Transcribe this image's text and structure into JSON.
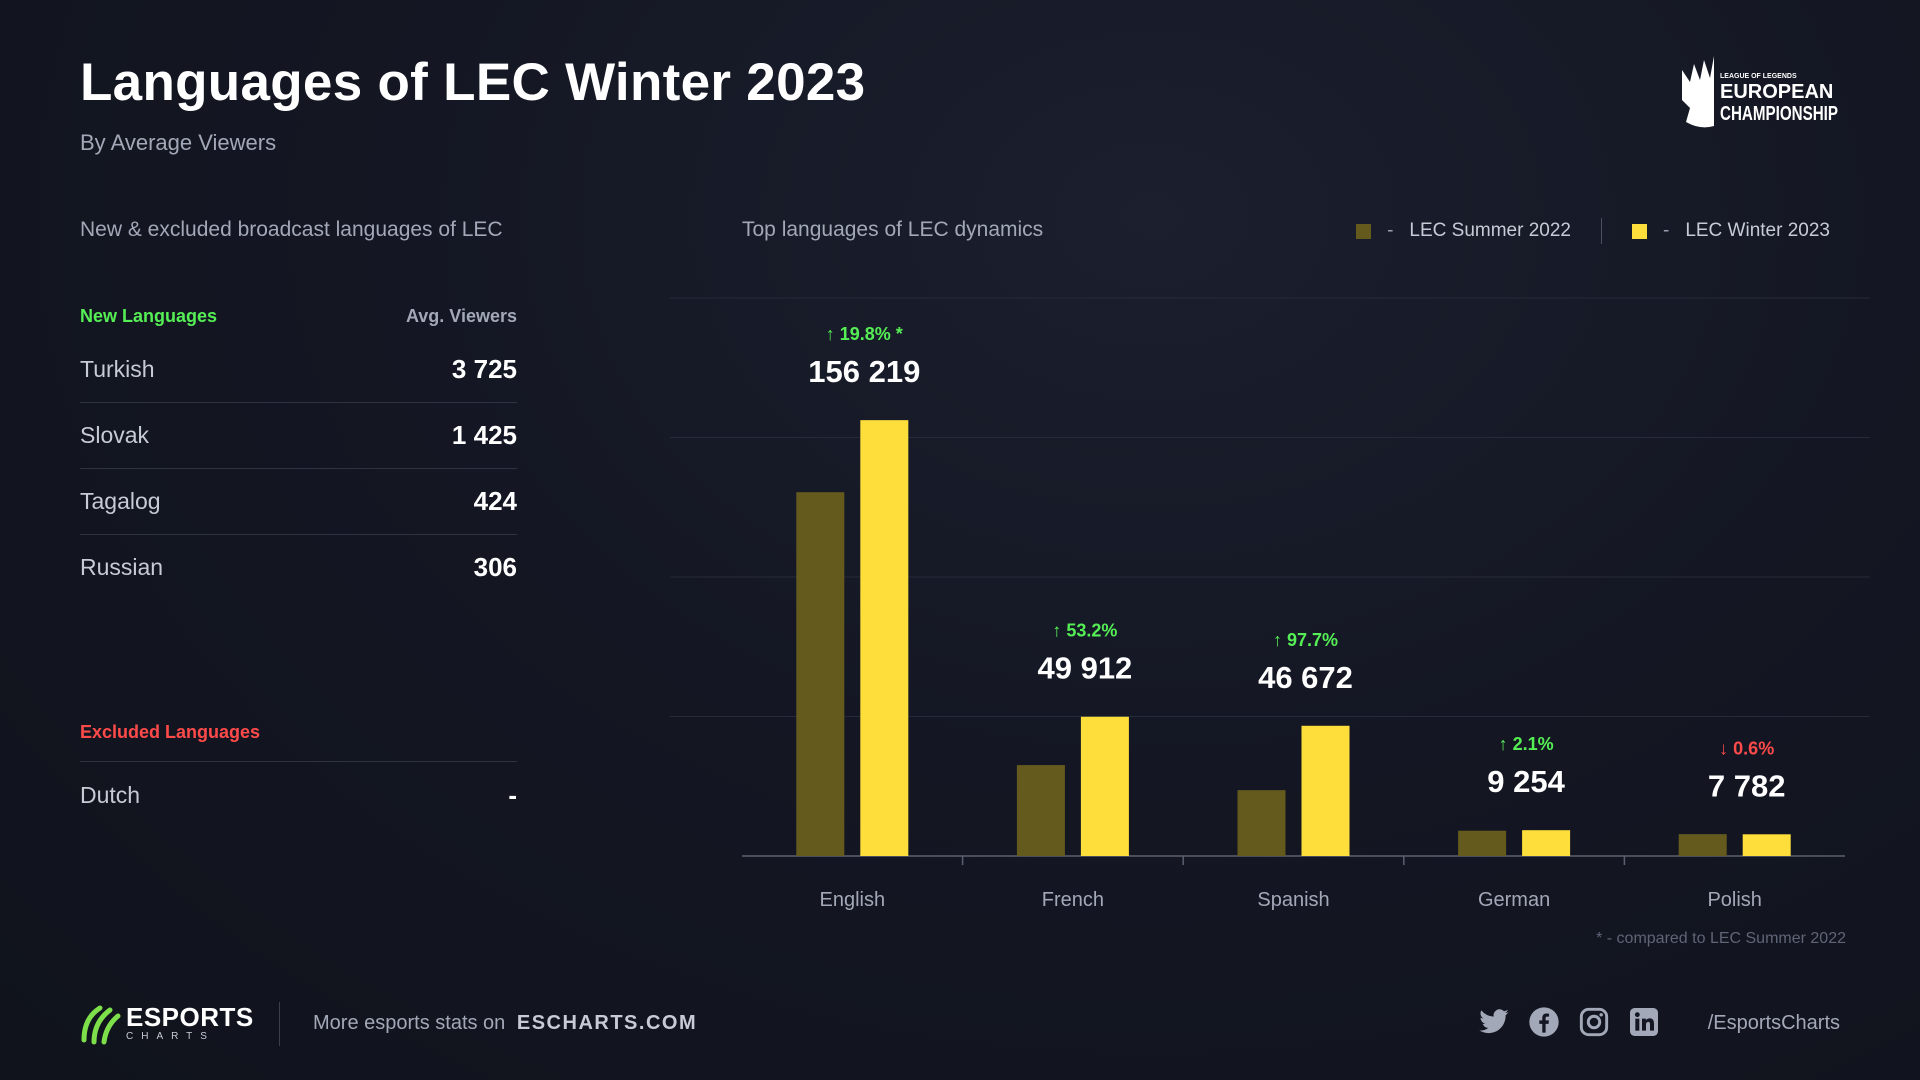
{
  "title": "Languages of LEC Winter 2023",
  "subtitle": "By Average Viewers",
  "logo_text": "LEAGUE OF LEGENDS EUROPEAN CHAMPIONSHIP",
  "left_panel": {
    "heading": "New & excluded broadcast languages of LEC",
    "new_header": "New Languages",
    "viewers_header": "Avg. Viewers",
    "new_languages": [
      {
        "name": "Turkish",
        "value": "3 725"
      },
      {
        "name": "Slovak",
        "value": "1 425"
      },
      {
        "name": "Tagalog",
        "value": "424"
      },
      {
        "name": "Russian",
        "value": "306"
      }
    ],
    "excluded_header": "Excluded Languages",
    "excluded_languages": [
      {
        "name": "Dutch",
        "value": "-"
      }
    ]
  },
  "right_panel": {
    "heading": "Top languages of LEC dynamics",
    "footnote": "* - compared to LEC Summer 2022"
  },
  "legend": [
    {
      "dash": "-",
      "label": "LEC Summer 2022",
      "color": "#655a1d"
    },
    {
      "dash": "-",
      "label": "LEC Winter 2023",
      "color": "#fede3a"
    }
  ],
  "chart_data": {
    "type": "bar",
    "categories": [
      "English",
      "French",
      "Spanish",
      "German",
      "Polish"
    ],
    "series": [
      {
        "name": "LEC Summer 2022",
        "color": "#655a1d",
        "values": [
          130400,
          32600,
          23600,
          9060,
          7830
        ]
      },
      {
        "name": "LEC Winter 2023",
        "color": "#fede3a",
        "values": [
          156219,
          49912,
          46672,
          9254,
          7782
        ]
      }
    ],
    "value_labels": [
      "156 219",
      "49 912",
      "46 672",
      "9 254",
      "7 782"
    ],
    "changes": [
      {
        "text": "19.8% *",
        "direction": "up"
      },
      {
        "text": "53.2%",
        "direction": "up"
      },
      {
        "text": "97.7%",
        "direction": "up"
      },
      {
        "text": "2.1%",
        "direction": "up"
      },
      {
        "text": "0.6%",
        "direction": "down"
      }
    ],
    "ylim": [
      0,
      200000
    ],
    "grid": true,
    "legend_position": "top-right",
    "up_color": "#55ee55",
    "down_color": "#ff4a4a"
  },
  "footer": {
    "brand": "ESPORTS",
    "brand_sub": "CHARTS",
    "more_text": "More esports stats on",
    "site": "ESCHARTS.COM",
    "social_icons": [
      "twitter-icon",
      "facebook-icon",
      "instagram-icon",
      "linkedin-icon"
    ],
    "handle": "/EsportsCharts"
  },
  "colors": {
    "new_languages": "#55ee55",
    "excluded_languages": "#ff4a4a"
  }
}
